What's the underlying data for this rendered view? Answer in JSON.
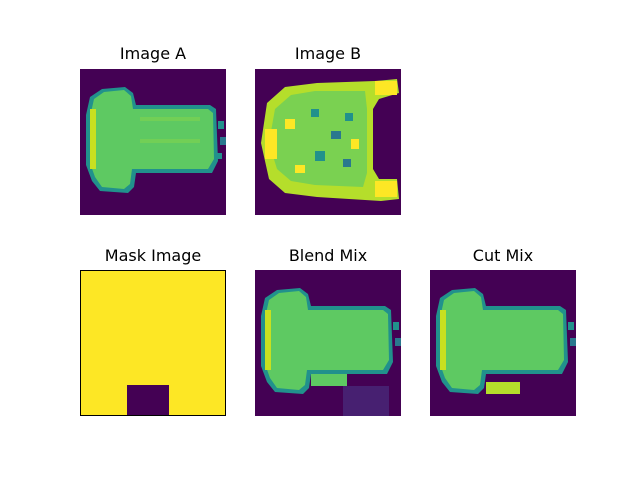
{
  "figure": {
    "panels": [
      {
        "id": "image-a",
        "title": "Image A"
      },
      {
        "id": "image-b",
        "title": "Image B"
      },
      {
        "id": "mask-image",
        "title": "Mask Image"
      },
      {
        "id": "blend-mix",
        "title": "Blend Mix"
      },
      {
        "id": "cut-mix",
        "title": "Cut Mix"
      }
    ],
    "colormap": {
      "dark": "#440154",
      "green": "#5ec962",
      "teal": "#21918c",
      "yellow": "#fde725"
    }
  }
}
